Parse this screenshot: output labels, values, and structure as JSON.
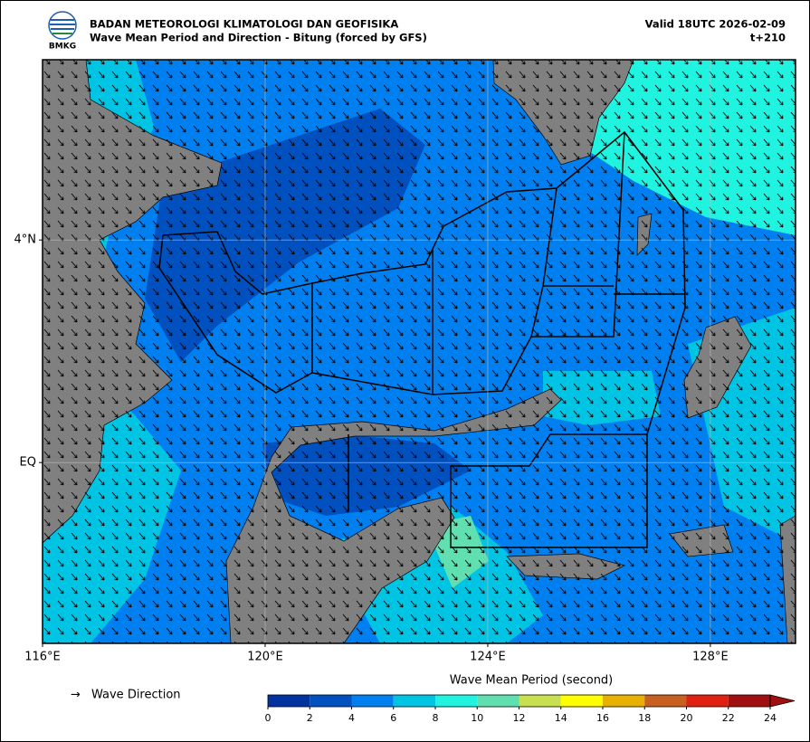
{
  "header": {
    "logo_text": "BMKG",
    "title": "BADAN METEOROLOGI KLIMATOLOGI DAN GEOFISIKA",
    "subtitle": "Wave Mean Period and Direction - Bitung (forced by GFS)",
    "valid": "Valid 18UTC 2026-02-09",
    "lead": "t+210"
  },
  "map": {
    "xlim": [
      116,
      129.53
    ],
    "ylim": [
      -3.25,
      7.24
    ],
    "xticks": [
      {
        "value": 116,
        "label": "116°E"
      },
      {
        "value": 120,
        "label": "120°E"
      },
      {
        "value": 124,
        "label": "124°E"
      },
      {
        "value": 128,
        "label": "128°E"
      }
    ],
    "yticks": [
      {
        "value": 4,
        "label": "4°N"
      },
      {
        "value": 0,
        "label": "EQ"
      }
    ],
    "grid": true
  },
  "legend": {
    "arrow": "→",
    "label": "Wave Direction"
  },
  "colorbar": {
    "title": "Wave Mean Period (second)",
    "lim": [
      0,
      24
    ],
    "ticks": [
      0,
      2,
      4,
      6,
      8,
      10,
      12,
      14,
      16,
      18,
      20,
      22,
      24
    ],
    "colors": [
      "#0033a0",
      "#0050c0",
      "#0080f0",
      "#00c4e4",
      "#20f4e0",
      "#60e0b0",
      "#c8e050",
      "#ffff00",
      "#e8b000",
      "#c86020",
      "#e02010",
      "#a01010"
    ]
  }
}
